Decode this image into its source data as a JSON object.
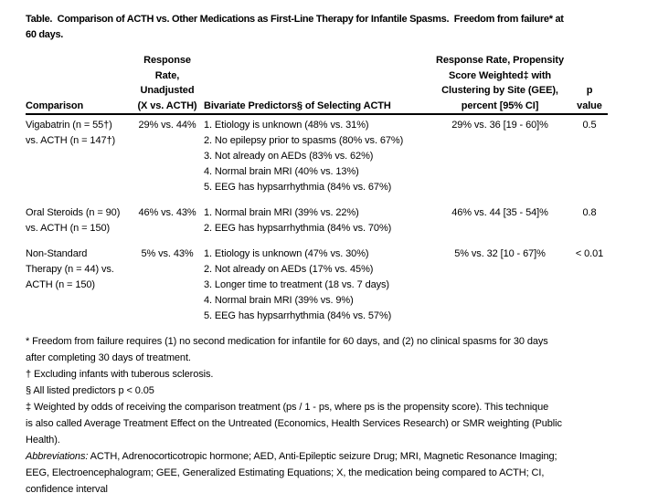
{
  "title": "Table.  Comparison of ACTH vs. Other Medications as First-Line Therapy for Infantile Spasms.  Freedom from failure* at\n60 days.",
  "table": {
    "headers": {
      "comparison": "Comparison",
      "unadjusted": "Response\nRate,\nUnadjusted\n(X vs. ACTH)",
      "predictors": "Bivariate Predictors§ of Selecting ACTH",
      "weighted": "Response Rate, Propensity\nScore Weighted‡ with\nClustering by Site (GEE),\npercent [95% CI]",
      "p_value": "p\nvalue"
    },
    "rows": [
      {
        "comparison": "Vigabatrin (n = 55†)\nvs. ACTH (n = 147†)",
        "unadjusted": "29% vs. 44%",
        "predictors": "1. Etiology is unknown (48% vs. 31%)\n2. No epilepsy prior to spasms (80% vs. 67%)\n3. Not already on AEDs (83% vs. 62%)\n4. Normal brain MRI (40% vs. 13%)\n5. EEG has hypsarrhythmia (84% vs. 67%)",
        "weighted": "29% vs. 36 [19 - 60]%",
        "p_value": "0.5"
      },
      {
        "comparison": "Oral Steroids (n = 90)\nvs. ACTH (n = 150)",
        "unadjusted": "46% vs. 43%",
        "predictors": "1. Normal brain MRI (39% vs. 22%)\n2. EEG has hypsarrhythmia (84% vs. 70%)",
        "weighted": "46% vs. 44 [35 - 54]%",
        "p_value": "0.8"
      },
      {
        "comparison": "Non-Standard\nTherapy (n = 44) vs.\nACTH (n = 150)",
        "unadjusted": "5% vs. 43%",
        "predictors": "1. Etiology is unknown (47% vs. 30%)\n2. Not already on AEDs (17% vs. 45%)\n3. Longer time to treatment (18 vs. 7 days)\n4. Normal brain MRI (39% vs. 9%)\n5. EEG has hypsarrhythmia (84% vs. 57%)",
        "weighted": "5% vs. 32 [10 - 67]%",
        "p_value": "< 0.01"
      }
    ]
  },
  "footnotes": {
    "freedom_from_failure": "* Freedom from failure requires (1) no second medication for infantile for 60 days, and (2) no clinical spasms for 30 days\nafter completing 30 days of treatment.",
    "tuberous_sclerosis": "† Excluding infants with tuberous sclerosis.",
    "predictors_significance": "§ All listed predictors p < 0.05",
    "weighting_method": "‡ Weighted by odds of receiving the comparison treatment (ps / 1 - ps, where ps is the propensity score). This technique\nis also called Average Treatment Effect on the Untreated (Economics, Health Services Research) or SMR weighting (Public\nHealth).",
    "abbreviations_label": "Abbreviations:",
    "abbreviations_text": " ACTH, Adrenocorticotropic hormone; AED, Anti-Epileptic seizure Drug; MRI, Magnetic Resonance Imaging;\nEEG, Electroencephalogram; GEE, Generalized Estimating Equations; X, the medication being compared to ACTH; CI,\nconfidence interval"
  }
}
